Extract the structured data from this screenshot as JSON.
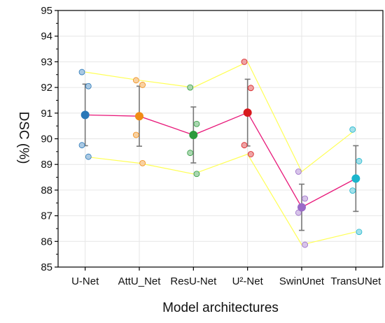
{
  "chart_data": {
    "type": "line",
    "title": "",
    "xlabel": "Model architectures",
    "ylabel": "DSC (%)",
    "ylim": [
      85,
      95
    ],
    "yticks": [
      85,
      86,
      87,
      88,
      89,
      90,
      91,
      92,
      93,
      94,
      95
    ],
    "grid": true,
    "categories": [
      "U-Net",
      "AttU_Net",
      "ResU-Net",
      "U²-Net",
      "SwinUnet",
      "TransUNet"
    ],
    "category_colors": [
      "#2a78b8",
      "#f08c14",
      "#2c9a3c",
      "#d7191c",
      "#9a6bc8",
      "#1bb5cc"
    ],
    "mean": [
      90.93,
      90.88,
      90.15,
      91.02,
      87.33,
      88.45
    ],
    "std": [
      1.2,
      1.17,
      1.09,
      1.3,
      0.9,
      1.28
    ],
    "upper_bound": [
      92.6,
      92.28,
      92.0,
      93.0,
      88.72,
      90.36
    ],
    "lower_bound": [
      89.3,
      89.05,
      88.63,
      89.4,
      85.87,
      86.37
    ],
    "folds": [
      [
        92.6,
        92.05,
        89.75,
        89.3
      ],
      [
        92.28,
        92.1,
        90.15,
        89.05
      ],
      [
        92.0,
        90.58,
        89.45,
        88.63
      ],
      [
        93.0,
        91.98,
        89.75,
        89.4
      ],
      [
        88.72,
        87.67,
        87.12,
        85.87
      ],
      [
        90.36,
        89.13,
        87.98,
        86.37
      ]
    ],
    "series_colors": {
      "mean": "#e8197a",
      "bounds": "#ffff55",
      "error_bar": "#777777"
    }
  }
}
